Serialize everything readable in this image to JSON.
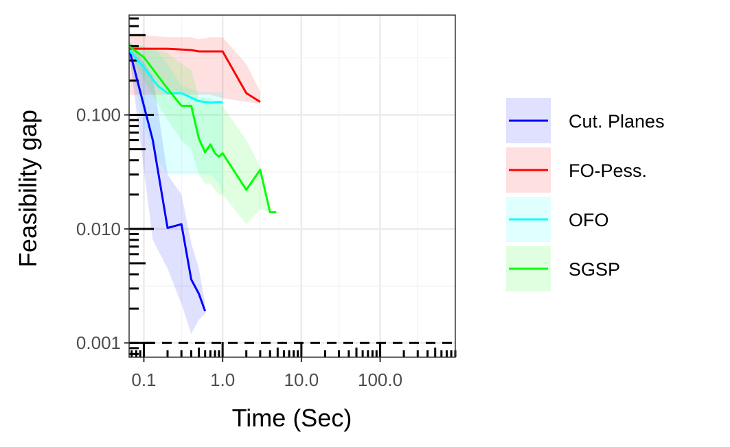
{
  "chart_data": {
    "type": "line",
    "xlabel": "Time (Sec)",
    "ylabel": "Feasibility gap",
    "x_scale": "log10",
    "y_scale": "log10",
    "xlim": [
      0.065,
      900
    ],
    "ylim": [
      0.00075,
      0.75
    ],
    "x_ticks": [
      0.1,
      1.0,
      10.0,
      100.0
    ],
    "x_tick_labels": [
      "0.1",
      "1.0",
      "10.0",
      "100.0"
    ],
    "y_ticks": [
      0.001,
      0.01,
      0.1
    ],
    "y_tick_labels": [
      "0.001",
      "0.010",
      "0.100"
    ],
    "grid": true,
    "legend_position": "right",
    "reference_line": {
      "y": 0.001,
      "style": "dashed",
      "color": "#000000"
    },
    "series": [
      {
        "name": "Cut. Planes",
        "color": "#0000ff",
        "fill": "#e0e0fb",
        "x": [
          0.065,
          0.13,
          0.2,
          0.3,
          0.4,
          0.5,
          0.6
        ],
        "y": [
          0.38,
          0.06,
          0.0102,
          0.011,
          0.0036,
          0.0027,
          0.0019
        ],
        "lower": [
          0.35,
          0.008,
          0.0045,
          0.0022,
          0.0012,
          0.0016,
          0.0018
        ],
        "upper": [
          0.45,
          0.22,
          0.03,
          0.02,
          0.0075,
          0.0045,
          0.0022
        ]
      },
      {
        "name": "FO-Pess.",
        "color": "#ff0000",
        "fill": "#fde0e0",
        "x": [
          0.065,
          0.1,
          0.2,
          0.4,
          0.5,
          0.7,
          1.0,
          2.0,
          3.0
        ],
        "y": [
          0.38,
          0.38,
          0.38,
          0.37,
          0.36,
          0.36,
          0.36,
          0.155,
          0.13
        ],
        "lower": [
          0.15,
          0.15,
          0.15,
          0.15,
          0.15,
          0.15,
          0.14,
          0.13,
          0.125
        ],
        "upper": [
          0.5,
          0.5,
          0.48,
          0.48,
          0.46,
          0.48,
          0.48,
          0.28,
          0.16
        ]
      },
      {
        "name": "OFO",
        "color": "#00ffff",
        "fill": "#e0fbfb",
        "x": [
          0.065,
          0.1,
          0.15,
          0.2,
          0.3,
          0.5,
          0.7,
          0.9,
          1.0
        ],
        "y": [
          0.37,
          0.26,
          0.18,
          0.155,
          0.155,
          0.132,
          0.128,
          0.13,
          0.128
        ],
        "lower": [
          0.33,
          0.08,
          0.04,
          0.03,
          0.03,
          0.03,
          0.03,
          0.025,
          0.02
        ],
        "upper": [
          0.42,
          0.4,
          0.36,
          0.28,
          0.18,
          0.16,
          0.16,
          0.16,
          0.16
        ]
      },
      {
        "name": "SGSP",
        "color": "#00ff00",
        "fill": "#e0fbe0",
        "x": [
          0.065,
          0.1,
          0.2,
          0.3,
          0.4,
          0.5,
          0.6,
          0.7,
          0.8,
          0.9,
          1.0,
          2.0,
          3.0,
          4.0,
          4.8
        ],
        "y": [
          0.4,
          0.32,
          0.17,
          0.12,
          0.12,
          0.062,
          0.047,
          0.055,
          0.046,
          0.043,
          0.046,
          0.022,
          0.033,
          0.014,
          0.014
        ],
        "lower": [
          0.38,
          0.2,
          0.09,
          0.06,
          0.05,
          0.03,
          0.025,
          0.025,
          0.022,
          0.02,
          0.02,
          0.011,
          0.015,
          0.014,
          0.014
        ],
        "upper": [
          0.42,
          0.4,
          0.35,
          0.28,
          0.25,
          0.14,
          0.14,
          0.14,
          0.13,
          0.13,
          0.12,
          0.06,
          0.035,
          0.015,
          0.014
        ]
      }
    ]
  }
}
